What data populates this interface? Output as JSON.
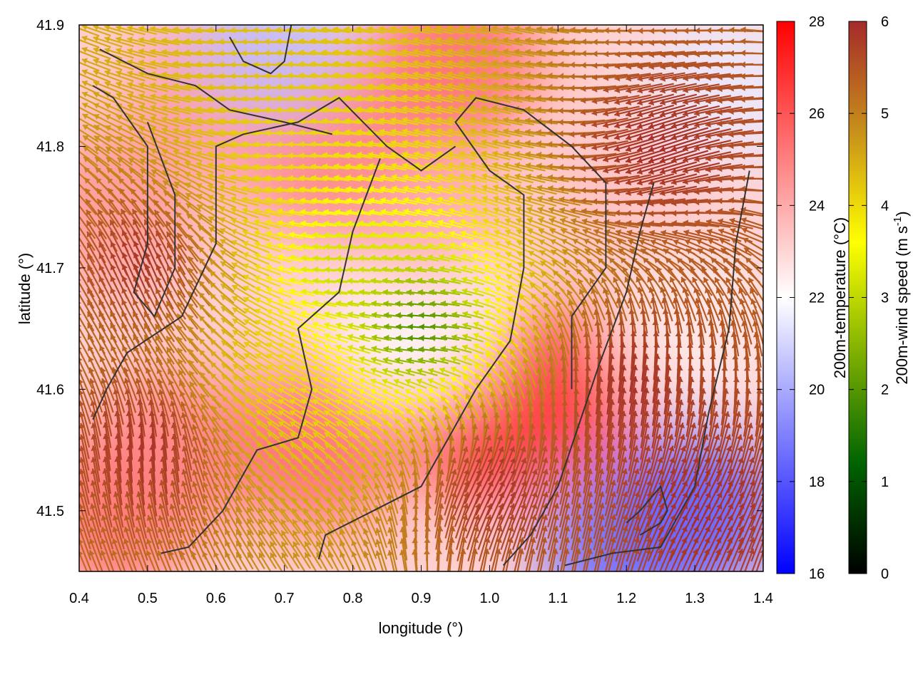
{
  "chart_data": {
    "type": "heatmap",
    "xlabel": "longitude (°)",
    "ylabel": "latitude (°)",
    "xlim": [
      0.4,
      1.4
    ],
    "ylim": [
      41.45,
      41.9
    ],
    "x_ticks": [
      "0.4",
      "0.5",
      "0.6",
      "0.7",
      "0.8",
      "0.9",
      "1.0",
      "1.1",
      "1.2",
      "1.3",
      "1.4"
    ],
    "y_ticks": [
      "41.5",
      "41.6",
      "41.7",
      "41.8",
      "41.9"
    ],
    "temperature_colorbar": {
      "label": "200m-temperature (°C)",
      "range": [
        16,
        28
      ],
      "ticks": [
        "16",
        "18",
        "20",
        "22",
        "24",
        "26",
        "28"
      ],
      "colors": [
        "#0000ff",
        "#ffffff",
        "#ff0000"
      ]
    },
    "wind_colorbar": {
      "label_main": "200m-wind speed (m s",
      "label_sup": "-1",
      "label_end": ")",
      "range": [
        0,
        6
      ],
      "ticks": [
        "0",
        "1",
        "2",
        "3",
        "4",
        "5",
        "6"
      ],
      "colors": [
        "#000000",
        "#006400",
        "#7fb000",
        "#ffff00",
        "#c8901a",
        "#a52a2a"
      ]
    },
    "temperature_field": [
      {
        "lon": 0.45,
        "lat": 41.5,
        "t": 25.5
      },
      {
        "lon": 0.55,
        "lat": 41.55,
        "t": 25.0
      },
      {
        "lon": 0.75,
        "lat": 41.55,
        "t": 25.5
      },
      {
        "lon": 1.0,
        "lat": 41.58,
        "t": 27.5
      },
      {
        "lon": 1.1,
        "lat": 41.6,
        "t": 26.5
      },
      {
        "lon": 0.9,
        "lat": 41.65,
        "t": 22.0
      },
      {
        "lon": 0.9,
        "lat": 41.75,
        "t": 24.0
      },
      {
        "lon": 0.75,
        "lat": 41.8,
        "t": 25.0
      },
      {
        "lon": 0.6,
        "lat": 41.85,
        "t": 24.5
      },
      {
        "lon": 0.95,
        "lat": 41.87,
        "t": 25.5
      },
      {
        "lon": 1.2,
        "lat": 41.75,
        "t": 23.5
      },
      {
        "lon": 1.3,
        "lat": 41.65,
        "t": 22.5
      },
      {
        "lon": 1.3,
        "lat": 41.5,
        "t": 18.0
      },
      {
        "lon": 1.2,
        "lat": 41.47,
        "t": 18.5
      },
      {
        "lon": 0.45,
        "lat": 41.75,
        "t": 24.5
      },
      {
        "lon": 1.35,
        "lat": 41.85,
        "t": 21.5
      },
      {
        "lon": 0.68,
        "lat": 41.89,
        "t": 20.5
      }
    ],
    "wind_field": [
      {
        "lon": 0.9,
        "lat": 41.65,
        "speed": 1.5,
        "dir_deg": 180
      },
      {
        "lon": 0.78,
        "lat": 41.7,
        "speed": 3.0,
        "dir_deg": 180
      },
      {
        "lon": 0.7,
        "lat": 41.6,
        "speed": 4.0,
        "dir_deg": 150
      },
      {
        "lon": 0.7,
        "lat": 41.8,
        "speed": 4.0,
        "dir_deg": 180
      },
      {
        "lon": 0.65,
        "lat": 41.87,
        "speed": 4.3,
        "dir_deg": 180
      },
      {
        "lon": 0.5,
        "lat": 41.7,
        "speed": 6.0,
        "dir_deg": 110
      },
      {
        "lon": 0.5,
        "lat": 41.55,
        "speed": 6.0,
        "dir_deg": 90
      },
      {
        "lon": 1.0,
        "lat": 41.52,
        "speed": 6.0,
        "dir_deg": 60
      },
      {
        "lon": 1.2,
        "lat": 41.6,
        "speed": 6.0,
        "dir_deg": 80
      },
      {
        "lon": 1.25,
        "lat": 41.8,
        "speed": 6.0,
        "dir_deg": 200
      },
      {
        "lon": 1.3,
        "lat": 41.5,
        "speed": 6.0,
        "dir_deg": 60
      }
    ],
    "contour_lines": [
      [
        [
          0.42,
          41.575
        ],
        [
          0.44,
          41.6
        ],
        [
          0.47,
          41.63
        ],
        [
          0.55,
          41.66
        ],
        [
          0.6,
          41.72
        ],
        [
          0.6,
          41.8
        ],
        [
          0.64,
          41.81
        ],
        [
          0.72,
          41.82
        ],
        [
          0.78,
          41.84
        ],
        [
          0.85,
          41.8
        ],
        [
          0.9,
          41.78
        ],
        [
          0.95,
          41.8
        ]
      ],
      [
        [
          0.52,
          41.465
        ],
        [
          0.56,
          41.47
        ],
        [
          0.61,
          41.5
        ],
        [
          0.66,
          41.55
        ],
        [
          0.72,
          41.56
        ],
        [
          0.74,
          41.6
        ],
        [
          0.72,
          41.65
        ],
        [
          0.78,
          41.68
        ],
        [
          0.8,
          41.73
        ],
        [
          0.82,
          41.76
        ],
        [
          0.84,
          41.79
        ]
      ],
      [
        [
          0.75,
          41.46
        ],
        [
          0.76,
          41.48
        ],
        [
          0.83,
          41.5
        ],
        [
          0.9,
          41.52
        ],
        [
          0.94,
          41.56
        ],
        [
          0.98,
          41.6
        ],
        [
          1.03,
          41.64
        ],
        [
          1.05,
          41.7
        ],
        [
          1.05,
          41.76
        ],
        [
          1.0,
          41.78
        ],
        [
          0.95,
          41.82
        ],
        [
          0.98,
          41.84
        ],
        [
          1.05,
          41.83
        ],
        [
          1.12,
          41.8
        ],
        [
          1.17,
          41.77
        ],
        [
          1.17,
          41.7
        ],
        [
          1.12,
          41.66
        ],
        [
          1.12,
          41.6
        ]
      ],
      [
        [
          1.02,
          41.455
        ],
        [
          1.06,
          41.48
        ],
        [
          1.1,
          41.52
        ],
        [
          1.13,
          41.57
        ],
        [
          1.16,
          41.62
        ],
        [
          1.2,
          41.68
        ],
        [
          1.22,
          41.73
        ],
        [
          1.24,
          41.77
        ]
      ],
      [
        [
          1.11,
          41.455
        ],
        [
          1.18,
          41.465
        ],
        [
          1.25,
          41.47
        ],
        [
          1.3,
          41.52
        ],
        [
          1.32,
          41.58
        ],
        [
          1.35,
          41.65
        ],
        [
          1.36,
          41.72
        ],
        [
          1.38,
          41.78
        ]
      ],
      [
        [
          0.42,
          41.85
        ],
        [
          0.45,
          41.84
        ],
        [
          0.5,
          41.8
        ],
        [
          0.5,
          41.72
        ],
        [
          0.48,
          41.68
        ],
        [
          0.51,
          41.66
        ],
        [
          0.54,
          41.7
        ],
        [
          0.54,
          41.76
        ],
        [
          0.5,
          41.82
        ]
      ],
      [
        [
          0.43,
          41.88
        ],
        [
          0.5,
          41.86
        ],
        [
          0.57,
          41.85
        ],
        [
          0.62,
          41.83
        ],
        [
          0.7,
          41.82
        ],
        [
          0.77,
          41.81
        ]
      ],
      [
        [
          0.62,
          41.89
        ],
        [
          0.64,
          41.87
        ],
        [
          0.68,
          41.86
        ],
        [
          0.7,
          41.87
        ],
        [
          0.71,
          41.9
        ]
      ],
      [
        [
          1.22,
          41.48
        ],
        [
          1.25,
          41.49
        ],
        [
          1.26,
          41.5
        ],
        [
          1.25,
          41.52
        ],
        [
          1.22,
          41.5
        ],
        [
          1.2,
          41.49
        ]
      ]
    ]
  }
}
